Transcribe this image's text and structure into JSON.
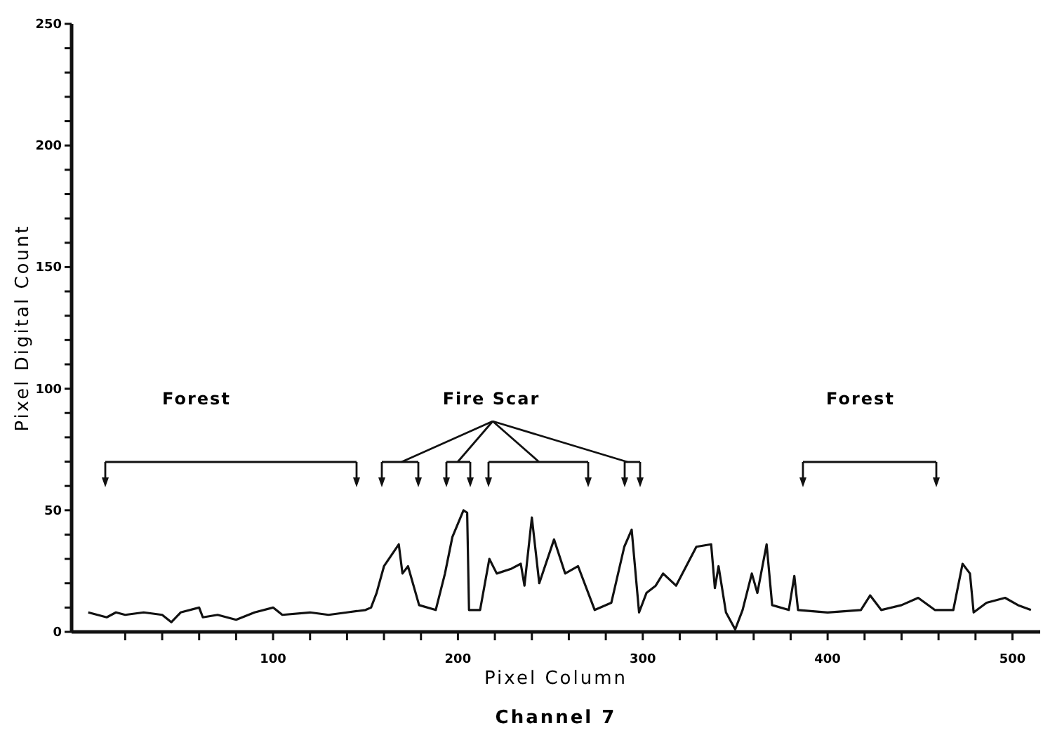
{
  "chart_data": {
    "type": "line",
    "title": "Channel 7",
    "xlabel": "Pixel Column",
    "ylabel": "Pixel Digital Count",
    "annotations": [
      "Forest",
      "Fire Scar",
      "Forest"
    ],
    "xlim": [
      -9,
      515
    ],
    "ylim": [
      0,
      250
    ],
    "xticks": [
      {
        "value": 20,
        "label": null
      },
      {
        "value": 40,
        "label": null
      },
      {
        "value": 60,
        "label": null
      },
      {
        "value": 80,
        "label": null
      },
      100,
      {
        "value": 120,
        "label": null
      },
      {
        "value": 140,
        "label": null
      },
      {
        "value": 160,
        "label": null
      },
      {
        "value": 180,
        "label": null
      },
      200,
      {
        "value": 220,
        "label": null
      },
      {
        "value": 240,
        "label": null
      },
      {
        "value": 260,
        "label": null
      },
      {
        "value": 280,
        "label": null
      },
      300,
      {
        "value": 320,
        "label": null
      },
      {
        "value": 340,
        "label": null
      },
      {
        "value": 360,
        "label": null
      },
      {
        "value": 380,
        "label": null
      },
      400,
      {
        "value": 420,
        "label": null
      },
      {
        "value": 440,
        "label": null
      },
      {
        "value": 460,
        "label": null
      },
      {
        "value": 480,
        "label": null
      },
      500
    ],
    "yticks": [
      0,
      {
        "value": 10,
        "label": null
      },
      {
        "value": 20,
        "label": null
      },
      {
        "value": 30,
        "label": null
      },
      {
        "value": 40,
        "label": null
      },
      50,
      {
        "value": 60,
        "label": null
      },
      {
        "value": 70,
        "label": null
      },
      {
        "value": 80,
        "label": null
      },
      {
        "value": 90,
        "label": null
      },
      100,
      {
        "value": 110,
        "label": null
      },
      {
        "value": 120,
        "label": null
      },
      {
        "value": 130,
        "label": null
      },
      {
        "value": 140,
        "label": null
      },
      150,
      {
        "value": 160,
        "label": null
      },
      {
        "value": 170,
        "label": null
      },
      {
        "value": 180,
        "label": null
      },
      {
        "value": 190,
        "label": null
      },
      200,
      {
        "value": 210,
        "label": null
      },
      {
        "value": 220,
        "label": null
      },
      {
        "value": 230,
        "label": null
      },
      {
        "value": 240,
        "label": null
      },
      250
    ],
    "grid": false,
    "marker": "none",
    "line_style": "solid",
    "x": [
      0,
      5,
      10,
      15,
      20,
      30,
      40,
      45,
      50,
      60,
      62,
      70,
      80,
      90,
      100,
      105,
      120,
      130,
      140,
      150,
      153,
      156,
      160,
      168,
      170,
      173,
      179,
      188,
      193,
      197,
      203,
      205,
      206,
      212,
      217,
      221,
      229,
      234,
      236,
      240,
      244,
      252,
      258,
      265,
      274,
      283,
      290,
      294,
      298,
      302,
      307,
      311,
      318,
      329,
      337,
      339,
      341,
      345,
      350,
      354,
      359,
      362,
      367,
      370,
      379,
      382,
      384,
      400,
      418,
      423,
      429,
      440,
      449,
      458,
      468,
      473,
      477,
      479,
      486,
      496,
      503,
      510
    ],
    "series": [
      {
        "color": "#111111",
        "values": [
          8,
          7,
          6,
          8,
          7,
          8,
          7,
          4,
          8,
          10,
          6,
          7,
          5,
          8,
          10,
          7,
          8,
          7,
          8,
          9,
          10,
          16,
          27,
          36,
          24,
          27,
          11,
          9,
          24,
          39,
          50,
          49,
          9,
          9,
          30,
          24,
          26,
          28,
          19,
          47,
          20,
          38,
          24,
          27,
          9,
          12,
          35,
          42,
          8,
          16,
          19,
          24,
          19,
          35,
          36,
          18,
          27,
          8,
          1,
          9,
          24,
          16,
          36,
          11,
          9,
          23,
          9,
          8,
          9,
          15,
          9,
          11,
          14,
          9,
          9,
          28,
          24,
          8,
          12,
          14,
          11,
          9
        ]
      }
    ]
  }
}
